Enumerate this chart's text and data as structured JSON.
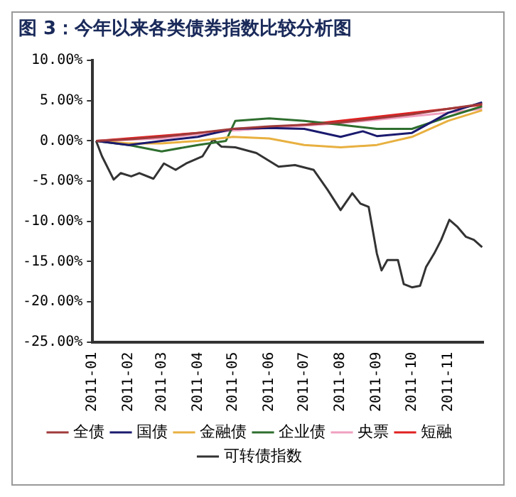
{
  "chart_data": {
    "type": "line",
    "title": "图 3：今年以来各类债券指数比较分析图",
    "xlim": [
      "2011-01-01",
      "2011-12-01"
    ],
    "xticks": [
      "2011-01",
      "2011-02",
      "2011-03",
      "2011-04",
      "2011-05",
      "2011-06",
      "2011-07",
      "2011-08",
      "2011-09",
      "2011-10",
      "2011-11"
    ],
    "ylim": [
      -25,
      10
    ],
    "yticks": [
      {
        "value": 10,
        "label": "10.00%"
      },
      {
        "value": 5,
        "label": "5.00%"
      },
      {
        "value": 0,
        "label": "0.00%"
      },
      {
        "value": -5,
        "label": "-5.00%"
      },
      {
        "value": -10,
        "label": "-10.00%"
      },
      {
        "value": -15,
        "label": "-15.00%"
      },
      {
        "value": -20,
        "label": "-20.00%"
      },
      {
        "value": -25,
        "label": "-25.00%"
      }
    ],
    "grid": false,
    "legend": "bottom",
    "marker": "none",
    "line_style": "solid",
    "series": [
      {
        "name": "全债",
        "color": "#a03a3a",
        "x": [
          "2011-01-04",
          "2011-02-01",
          "2011-03-01",
          "2011-04-01",
          "2011-05-01",
          "2011-06-01",
          "2011-07-01",
          "2011-08-01",
          "2011-09-01",
          "2011-10-01",
          "2011-11-01",
          "2011-11-30"
        ],
        "values": [
          0,
          0.2,
          0.5,
          1,
          1.5,
          1.8,
          2,
          2.3,
          2.8,
          3.3,
          4,
          4.6
        ]
      },
      {
        "name": "国债",
        "color": "#1a1a6e",
        "x": [
          "2011-01-04",
          "2011-02-01",
          "2011-03-01",
          "2011-04-01",
          "2011-05-01",
          "2011-06-01",
          "2011-07-01",
          "2011-08-01",
          "2011-08-20",
          "2011-09-01",
          "2011-10-01",
          "2011-11-01",
          "2011-11-30"
        ],
        "values": [
          0,
          -0.5,
          0,
          0.5,
          1.5,
          1.6,
          1.5,
          0.5,
          1.2,
          0.6,
          1,
          3.5,
          4.8
        ]
      },
      {
        "name": "金融债",
        "color": "#e8b040",
        "x": [
          "2011-01-04",
          "2011-02-01",
          "2011-03-01",
          "2011-04-01",
          "2011-05-01",
          "2011-06-01",
          "2011-07-01",
          "2011-08-01",
          "2011-09-01",
          "2011-10-01",
          "2011-11-01",
          "2011-11-30"
        ],
        "values": [
          0,
          -0.3,
          -0.3,
          0,
          0.5,
          0.3,
          -0.5,
          -0.8,
          -0.5,
          0.5,
          2.5,
          3.8
        ]
      },
      {
        "name": "企业债",
        "color": "#2e6e2e",
        "x": [
          "2011-01-04",
          "2011-02-01",
          "2011-03-01",
          "2011-04-01",
          "2011-04-25",
          "2011-05-03",
          "2011-06-01",
          "2011-07-01",
          "2011-08-01",
          "2011-09-01",
          "2011-10-01",
          "2011-11-01",
          "2011-11-30"
        ],
        "values": [
          0,
          -0.5,
          -1.3,
          -0.5,
          0,
          2.5,
          2.8,
          2.5,
          2,
          1.5,
          1.5,
          3,
          4.3
        ]
      },
      {
        "name": "央票",
        "color": "#f0a0c0",
        "x": [
          "2011-01-04",
          "2011-03-01",
          "2011-05-01",
          "2011-08-01",
          "2011-11-01",
          "2011-11-30"
        ],
        "values": [
          0,
          0.3,
          1.3,
          2.2,
          3.5,
          4
        ]
      },
      {
        "name": "短融",
        "color": "#e02020",
        "x": [
          "2011-01-04",
          "2011-04-01",
          "2011-07-01",
          "2011-09-01",
          "2011-11-01",
          "2011-11-30"
        ],
        "values": [
          0,
          1,
          2,
          3,
          4,
          4.5
        ]
      },
      {
        "name": "可转债指数",
        "color": "#333333",
        "x": [
          "2011-01-04",
          "2011-01-09",
          "2011-01-19",
          "2011-01-25",
          "2011-02-03",
          "2011-02-10",
          "2011-02-22",
          "2011-03-03",
          "2011-03-13",
          "2011-03-22",
          "2011-04-05",
          "2011-04-14",
          "2011-04-21",
          "2011-05-03",
          "2011-05-21",
          "2011-06-09",
          "2011-06-23",
          "2011-07-09",
          "2011-07-21",
          "2011-08-01",
          "2011-08-11",
          "2011-08-18",
          "2011-08-25",
          "2011-09-01",
          "2011-09-05",
          "2011-09-10",
          "2011-09-19",
          "2011-09-24",
          "2011-10-01",
          "2011-10-08",
          "2011-10-13",
          "2011-10-20",
          "2011-10-26",
          "2011-11-02",
          "2011-11-09",
          "2011-11-16",
          "2011-11-23",
          "2011-11-30"
        ],
        "values": [
          0,
          -1.9,
          -4.8,
          -4,
          -4.4,
          -4,
          -4.7,
          -2.8,
          -3.6,
          -2.8,
          -1.9,
          0.2,
          -0.7,
          -0.8,
          -1.5,
          -3.2,
          -3,
          -3.6,
          -6.1,
          -8.6,
          -6.5,
          -7.8,
          -8.2,
          -14,
          -16.1,
          -14.8,
          -14.8,
          -17.8,
          -18.2,
          -18,
          -15.7,
          -14,
          -12.3,
          -9.8,
          -10.7,
          -11.9,
          -12.3,
          -13.2
        ]
      }
    ]
  }
}
